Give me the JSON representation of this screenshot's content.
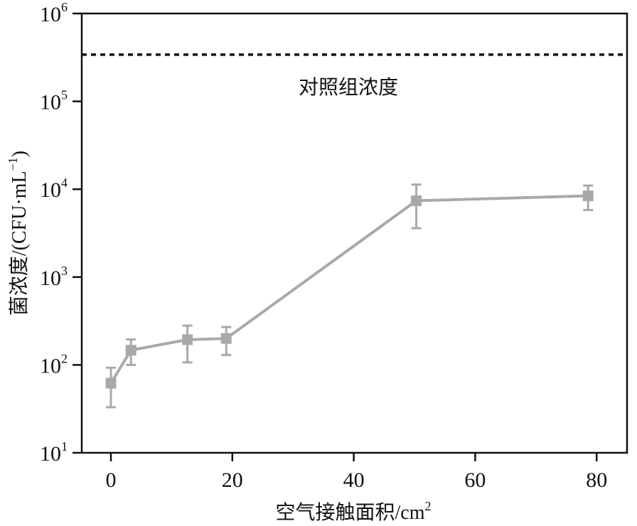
{
  "chart_data": {
    "type": "line",
    "title": "",
    "xlabel": "空气接触面积/cm²",
    "ylabel": "菌浓度/(CFU·mL⁻¹)",
    "xlabel_parts": {
      "main": "空气接触面积/cm",
      "sup": "2"
    },
    "ylabel_parts": {
      "main": "菌浓度/(CFU·mL",
      "sup": "−1",
      "end": ")"
    },
    "yscale": "log",
    "ylim": [
      10,
      1000000
    ],
    "xlim": [
      -7,
      85
    ],
    "x_ticks": [
      "0",
      "20",
      "40",
      "60",
      "80"
    ],
    "y_ticks": [
      {
        "base": "10",
        "exp": "1"
      },
      {
        "base": "10",
        "exp": "2"
      },
      {
        "base": "10",
        "exp": "3"
      },
      {
        "base": "10",
        "exp": "4"
      },
      {
        "base": "10",
        "exp": "5"
      },
      {
        "base": "10",
        "exp": "6"
      }
    ],
    "grid": false,
    "series": [
      {
        "name": "菌浓度",
        "color": "#a9a9a9",
        "marker": "square",
        "x": [
          0,
          3.3,
          12.6,
          19,
          50.3,
          78.6
        ],
        "values": [
          62,
          147,
          194,
          200,
          7400,
          8400
        ],
        "error_low": [
          33,
          100,
          107,
          130,
          3600,
          5800
        ],
        "error_high": [
          93,
          195,
          280,
          270,
          11300,
          11000
        ]
      }
    ],
    "reference_line": {
      "label": "对照组浓度",
      "value": 340000,
      "style": "dotted",
      "color": "#111111"
    }
  }
}
